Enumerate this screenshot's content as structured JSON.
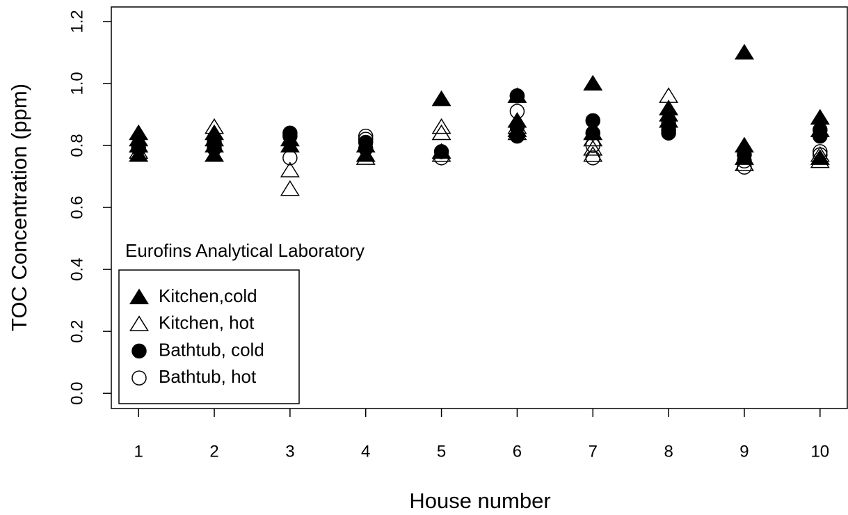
{
  "chart_data": {
    "type": "scatter",
    "x_label": "House number",
    "y_label": "TOC Concentration (ppm)",
    "annotation": "Eurofins Analytical Laboratory",
    "xlim": [
      0.64,
      10.36
    ],
    "ylim": [
      -0.049,
      1.247
    ],
    "xticks": [
      1,
      2,
      3,
      4,
      5,
      6,
      7,
      8,
      9,
      10
    ],
    "yticks": [
      {
        "value": 0,
        "label": "0.0"
      },
      0.2,
      0.4,
      0.6,
      0.8,
      {
        "value": 1,
        "label": "1.0"
      },
      1.2
    ],
    "legend": "bottom-left",
    "series": [
      {
        "name": "Kitchen,cold",
        "color": "#000000",
        "marker": "triangle",
        "filled": true,
        "x": [
          1,
          1,
          1,
          1,
          2,
          2,
          2,
          3,
          3,
          4,
          4,
          5,
          5,
          6,
          6,
          6,
          7,
          7,
          8,
          8,
          8,
          9,
          9,
          9,
          10,
          10,
          10
        ],
        "values": [
          0.84,
          0.8,
          0.77,
          0.82,
          0.77,
          0.8,
          0.84,
          0.8,
          0.82,
          0.77,
          0.8,
          0.95,
          0.78,
          0.96,
          0.88,
          0.85,
          1.0,
          0.84,
          0.92,
          0.9,
          0.88,
          1.1,
          0.8,
          0.76,
          0.89,
          0.85,
          0.76
        ]
      },
      {
        "name": "Kitchen, hot",
        "color": "#000000",
        "marker": "triangle",
        "filled": false,
        "x": [
          1,
          1,
          2,
          2,
          3,
          3,
          4,
          5,
          5,
          5,
          6,
          6,
          7,
          7,
          7,
          8,
          9,
          10,
          10
        ],
        "values": [
          0.78,
          0.8,
          0.86,
          0.82,
          0.72,
          0.66,
          0.76,
          0.86,
          0.84,
          0.77,
          0.86,
          0.84,
          0.82,
          0.79,
          0.77,
          0.96,
          0.74,
          0.75,
          0.77
        ]
      },
      {
        "name": "Bathtub, cold",
        "color": "#000000",
        "marker": "circle",
        "filled": true,
        "x": [
          1,
          2,
          2,
          3,
          3,
          4,
          4,
          5,
          6,
          6,
          6,
          7,
          7,
          8,
          8,
          9,
          10,
          10
        ],
        "values": [
          0.79,
          0.81,
          0.79,
          0.84,
          0.83,
          0.81,
          0.79,
          0.78,
          0.96,
          0.83,
          0.86,
          0.88,
          0.84,
          0.84,
          0.85,
          0.77,
          0.83,
          0.85
        ]
      },
      {
        "name": "Bathtub, hot",
        "color": "#000000",
        "marker": "circle",
        "filled": false,
        "x": [
          1,
          2,
          3,
          4,
          4,
          5,
          6,
          6,
          7,
          7,
          8,
          9,
          9,
          10,
          10
        ],
        "values": [
          0.79,
          0.8,
          0.76,
          0.83,
          0.82,
          0.76,
          0.91,
          0.96,
          0.76,
          0.8,
          0.87,
          0.73,
          0.75,
          0.78,
          0.77
        ]
      }
    ]
  }
}
